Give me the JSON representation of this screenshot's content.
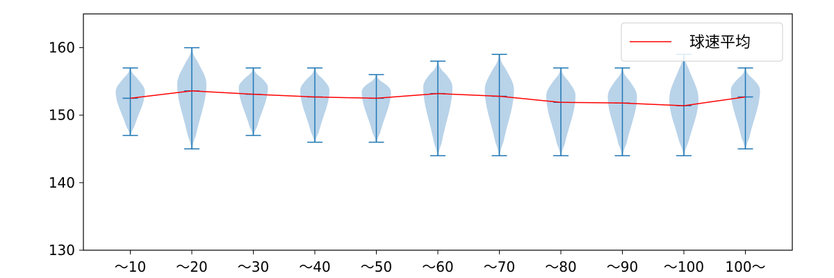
{
  "chart_data": {
    "type": "violin",
    "categories": [
      "～10",
      "～20",
      "～30",
      "～40",
      "～50",
      "～60",
      "～70",
      "～80",
      "～90",
      "～100",
      "100～"
    ],
    "ylim": [
      130,
      165
    ],
    "yticks": [
      130,
      140,
      150,
      160
    ],
    "distributions": [
      {
        "min": 147,
        "max": 157,
        "mean": 152.5
      },
      {
        "min": 145,
        "max": 160,
        "mean": 153.6
      },
      {
        "min": 147,
        "max": 157,
        "mean": 153.1
      },
      {
        "min": 146,
        "max": 157,
        "mean": 152.7
      },
      {
        "min": 146,
        "max": 156,
        "mean": 152.5
      },
      {
        "min": 144,
        "max": 158,
        "mean": 153.2
      },
      {
        "min": 144,
        "max": 159,
        "mean": 152.8
      },
      {
        "min": 144,
        "max": 157,
        "mean": 151.9
      },
      {
        "min": 144,
        "max": 157,
        "mean": 151.8
      },
      {
        "min": 144,
        "max": 159,
        "mean": 151.4
      },
      {
        "min": 145,
        "max": 157,
        "mean": 152.7
      }
    ],
    "series": [
      {
        "name": "球速平均",
        "color": "#ff0000",
        "values": [
          152.5,
          153.6,
          153.1,
          152.7,
          152.5,
          153.2,
          152.8,
          151.9,
          151.8,
          151.4,
          152.7
        ]
      }
    ],
    "legend": {
      "position": "top-right",
      "label": "球速平均"
    },
    "colors": {
      "violin_fill": "#b9d3e9",
      "violin_line": "#1f77b4",
      "mean_line": "#ff0000",
      "axis": "#000000"
    },
    "grid": false
  }
}
